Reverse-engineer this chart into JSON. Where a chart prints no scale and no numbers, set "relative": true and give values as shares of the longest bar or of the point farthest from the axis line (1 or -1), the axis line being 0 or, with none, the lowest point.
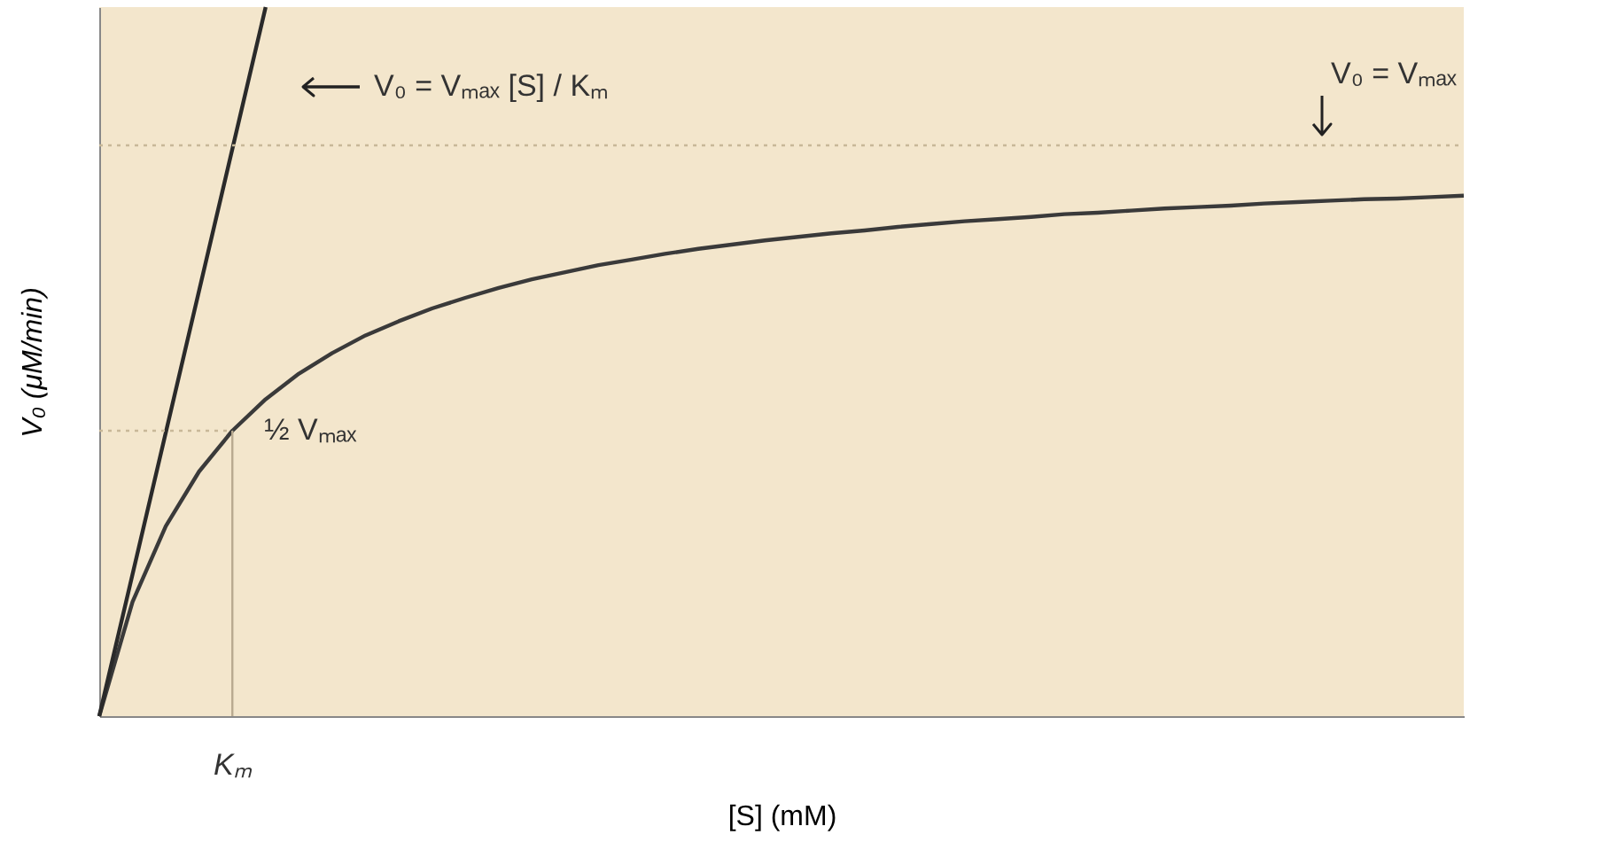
{
  "chart_data": {
    "type": "line",
    "relative": true,
    "xlabel": "[S] (mM)",
    "ylabel": "V₀ (μM/min)",
    "categories": [
      null,
      null,
      null,
      null,
      null,
      null,
      null,
      null,
      null,
      null,
      null,
      null,
      null,
      null,
      null,
      null,
      null,
      null,
      null,
      null,
      null,
      null,
      null,
      null,
      null,
      null,
      null,
      null,
      null,
      null,
      null,
      null,
      null,
      null,
      null,
      null,
      null,
      null,
      null,
      null,
      null,
      null
    ],
    "series": [
      {
        "color": "#3a3a3a",
        "values": [
          0,
          0.161,
          0.268,
          0.345,
          0.4025,
          0.447,
          0.483,
          0.512,
          0.537,
          0.557,
          0.575,
          0.59,
          0.604,
          0.616,
          0.626,
          0.636,
          0.644,
          0.652,
          0.659,
          0.665,
          0.671,
          0.676,
          0.681,
          0.685,
          0.69,
          0.694,
          0.698,
          0.701,
          0.704,
          0.708,
          0.71,
          0.713,
          0.716,
          0.718,
          0.72,
          0.723,
          0.725,
          0.727,
          0.729,
          0.73,
          0.732,
          0.734
        ]
      },
      {
        "color": "#2a2a2a",
        "values": [
          0,
          0.2,
          0.4,
          0.6,
          0.8,
          1,
          null,
          null,
          null,
          null,
          null,
          null,
          null,
          null,
          null,
          null,
          null,
          null,
          null,
          null,
          null,
          null,
          null,
          null,
          null,
          null,
          null,
          null,
          null,
          null,
          null,
          null,
          null,
          null,
          null,
          null,
          null,
          null,
          null,
          null,
          null,
          null
        ]
      }
    ],
    "ref_lines": [
      {
        "axis": "y",
        "value": 0.805,
        "label": "V₀ = Vₘₐₓ",
        "color": "#c8b898",
        "line_style": "dotted"
      },
      {
        "axis": "y",
        "value": 0.4025,
        "label": "½ Vₘₐₓ",
        "color": "#c8b898",
        "line_style": "dotted"
      },
      {
        "axis": "x",
        "label": "Kₘ",
        "color": "#b8aa90",
        "line_style": "solid"
      }
    ],
    "annotations": [
      "V₀ = Vₘₐₓ [S] / Kₘ"
    ],
    "marker": "none",
    "line_style": "solid"
  }
}
